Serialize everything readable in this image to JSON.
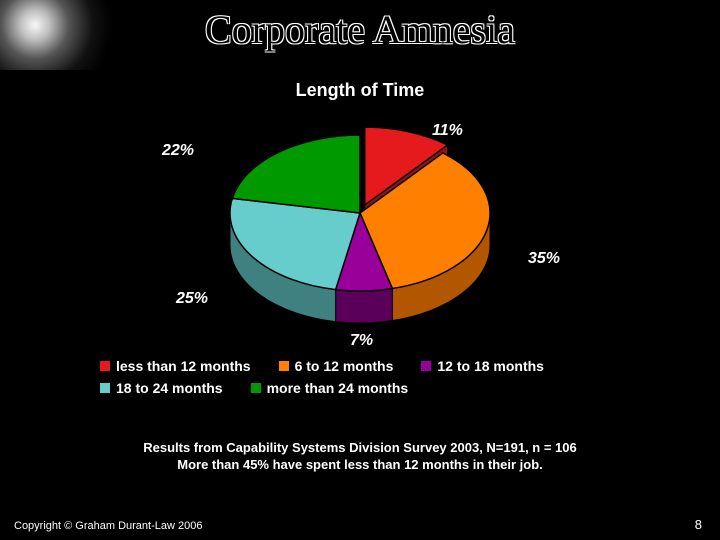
{
  "slide": {
    "title": "Corporate Amnesia",
    "background_color": "#000000",
    "title_font": "Times New Roman",
    "title_fontsize": 40,
    "title_color_fill": "#000000",
    "title_color_outline": "#ffffff"
  },
  "chart": {
    "type": "pie-3d",
    "title": "Length of Time",
    "title_color": "#ffffff",
    "title_fontsize": 18,
    "title_weight": "bold",
    "background_color": "#000000",
    "slice_outline_color": "#000000",
    "exploded_index": 0,
    "slices": [
      {
        "label": "less than 12 months",
        "value": 11,
        "percent_label": "11%",
        "color": "#e41a1c",
        "side_color": "#9a1212"
      },
      {
        "label": "6 to 12 months",
        "value": 35,
        "percent_label": "35%",
        "color": "#ff7f00",
        "side_color": "#b35600"
      },
      {
        "label": "12 to 18 months",
        "value": 7,
        "percent_label": "7%",
        "color": "#990099",
        "side_color": "#5a005a"
      },
      {
        "label": "18 to 24 months",
        "value": 25,
        "percent_label": "25%",
        "color": "#66cccc",
        "side_color": "#3f8080"
      },
      {
        "label": "more than 24 months",
        "value": 22,
        "percent_label": "22%",
        "color": "#009900",
        "side_color": "#005a00"
      }
    ],
    "data_label_color": "#ffffff",
    "data_label_fontsize": 16,
    "data_label_style": "italic bold",
    "legend_text_color": "#ffffff",
    "legend_fontsize": 14,
    "legend_weight": "bold"
  },
  "caption": {
    "line1": "Results from Capability Systems Division Survey 2003,  N=191, n = 106",
    "line2": "More than 45% have spent less than 12 months in their job.",
    "color": "#ffffff",
    "fontsize": 13,
    "weight": "bold"
  },
  "footer": {
    "copyright": "Copyright © Graham Durant-Law 2006",
    "page_number": "8",
    "color": "#ffffff"
  }
}
